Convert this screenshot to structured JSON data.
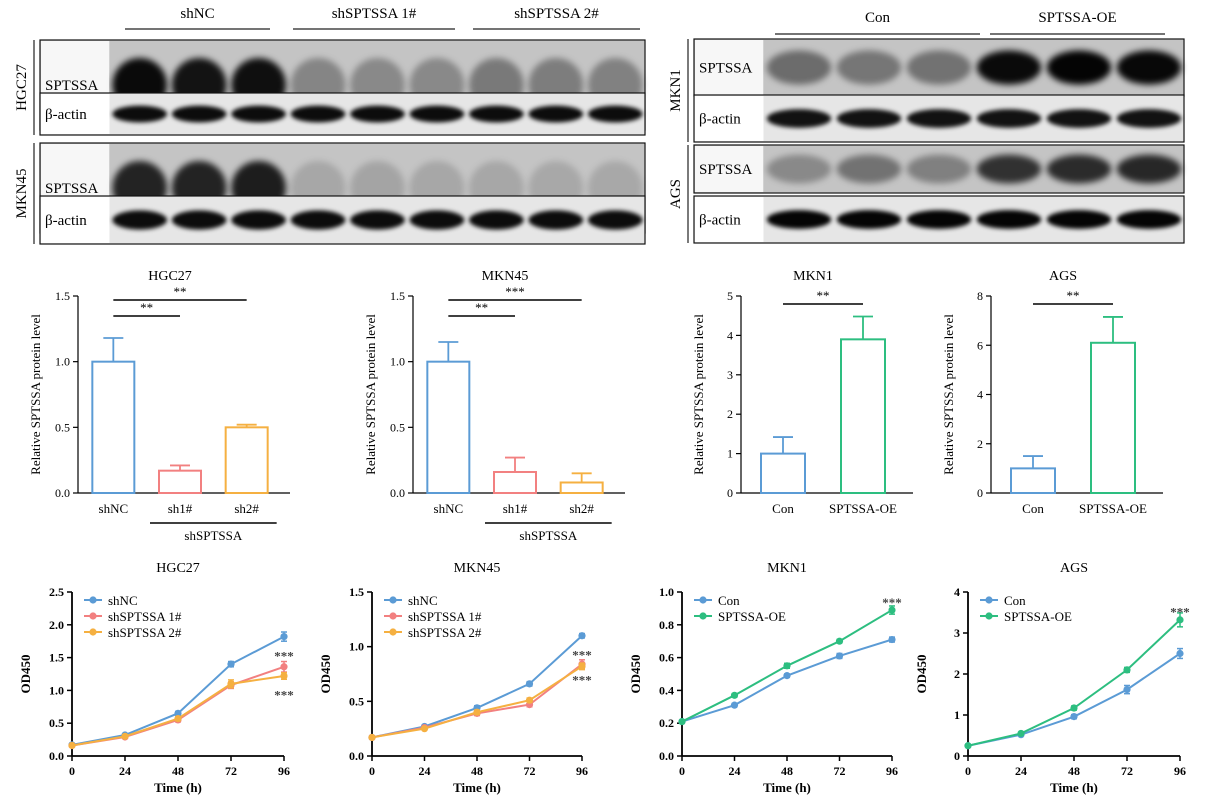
{
  "blots": [
    {
      "groups": [
        "shNC",
        "shSPTSSA 1#",
        "shSPTSSA 2#"
      ],
      "cell_lines": [
        {
          "name": "HGC27",
          "rows": [
            "SPTSSA",
            "β-actin"
          ]
        },
        {
          "name": "MKN45",
          "rows": [
            "SPTSSA",
            "β-actin"
          ]
        }
      ]
    },
    {
      "groups": [
        "Con",
        "SPTSSA-OE"
      ],
      "cell_lines": [
        {
          "name": "MKN1",
          "rows": [
            "SPTSSA",
            "β-actin"
          ]
        },
        {
          "name": "AGS",
          "rows": [
            "SPTSSA",
            "β-actin"
          ]
        }
      ]
    }
  ],
  "chart_data": [
    {
      "id": "bar-hgc27",
      "type": "bar",
      "title": "HGC27",
      "ylabel": "Relative SPTSSA protein level",
      "categories": [
        "shNC",
        "sh1#",
        "sh2#"
      ],
      "values": [
        1.0,
        0.17,
        0.5
      ],
      "errors": [
        0.18,
        0.04,
        0.02
      ],
      "colors": [
        "#5b9bd5",
        "#f28080",
        "#f5b041"
      ],
      "ylim": [
        0,
        1.5
      ],
      "yticks": [
        "0.0",
        "0.5",
        "1.0",
        "1.5"
      ],
      "group_label": "shSPTSSA",
      "significance": [
        {
          "from": 0,
          "to": 1,
          "label": "**"
        },
        {
          "from": 0,
          "to": 2,
          "label": "**"
        }
      ]
    },
    {
      "id": "bar-mkn45",
      "type": "bar",
      "title": "MKN45",
      "ylabel": "Relative SPTSSA protein level",
      "categories": [
        "shNC",
        "sh1#",
        "sh2#"
      ],
      "values": [
        1.0,
        0.16,
        0.08
      ],
      "errors": [
        0.15,
        0.11,
        0.07
      ],
      "colors": [
        "#5b9bd5",
        "#f28080",
        "#f5b041"
      ],
      "ylim": [
        0,
        1.5
      ],
      "yticks": [
        "0.0",
        "0.5",
        "1.0",
        "1.5"
      ],
      "group_label": "shSPTSSA",
      "significance": [
        {
          "from": 0,
          "to": 1,
          "label": "**"
        },
        {
          "from": 0,
          "to": 2,
          "label": "***"
        }
      ]
    },
    {
      "id": "bar-mkn1",
      "type": "bar",
      "title": "MKN1",
      "ylabel": "Relative SPTSSA protein level",
      "categories": [
        "Con",
        "SPTSSA-OE"
      ],
      "values": [
        1.0,
        3.9
      ],
      "errors": [
        0.42,
        0.58
      ],
      "colors": [
        "#5b9bd5",
        "#2dbe80"
      ],
      "ylim": [
        0,
        5
      ],
      "yticks": [
        "0",
        "1",
        "2",
        "3",
        "4",
        "5"
      ],
      "group_label": "",
      "significance": [
        {
          "from": 0,
          "to": 1,
          "label": "**"
        }
      ]
    },
    {
      "id": "bar-ags",
      "type": "bar",
      "title": "AGS",
      "ylabel": "Relative SPTSSA protein level",
      "categories": [
        "Con",
        "SPTSSA-OE"
      ],
      "values": [
        1.0,
        6.1
      ],
      "errors": [
        0.5,
        1.05
      ],
      "colors": [
        "#5b9bd5",
        "#2dbe80"
      ],
      "ylim": [
        0,
        8
      ],
      "yticks": [
        "0",
        "2",
        "4",
        "6",
        "8"
      ],
      "group_label": "",
      "significance": [
        {
          "from": 0,
          "to": 1,
          "label": "**"
        }
      ]
    },
    {
      "id": "line-hgc27",
      "type": "line",
      "title": "HGC27",
      "xlabel": "Time (h)",
      "ylabel": "OD450",
      "x": [
        0,
        24,
        48,
        72,
        96
      ],
      "xticks": [
        "0",
        "24",
        "48",
        "72",
        "96"
      ],
      "ylim": [
        0,
        2.5
      ],
      "yticks": [
        "0.0",
        "0.5",
        "1.0",
        "1.5",
        "2.0",
        "2.5"
      ],
      "series": [
        {
          "name": "shNC",
          "color": "#5b9bd5",
          "values": [
            0.17,
            0.32,
            0.65,
            1.4,
            1.82
          ],
          "errors": [
            0.01,
            0.02,
            0.03,
            0.04,
            0.07
          ]
        },
        {
          "name": "shSPTSSA 1#",
          "color": "#f28080",
          "values": [
            0.16,
            0.29,
            0.55,
            1.08,
            1.36
          ],
          "errors": [
            0.01,
            0.02,
            0.03,
            0.05,
            0.08
          ]
        },
        {
          "name": "shSPTSSA 2#",
          "color": "#f5b041",
          "values": [
            0.16,
            0.3,
            0.57,
            1.1,
            1.22
          ],
          "errors": [
            0.01,
            0.02,
            0.03,
            0.06,
            0.05
          ]
        }
      ],
      "annotations": [
        {
          "x": 96,
          "y": 1.53,
          "label": "***"
        },
        {
          "x": 96,
          "y": 0.94,
          "label": "***"
        }
      ]
    },
    {
      "id": "line-mkn45",
      "type": "line",
      "title": "MKN45",
      "xlabel": "Time (h)",
      "ylabel": "OD450",
      "x": [
        0,
        24,
        48,
        72,
        96
      ],
      "xticks": [
        "0",
        "24",
        "48",
        "72",
        "96"
      ],
      "ylim": [
        0,
        1.5
      ],
      "yticks": [
        "0.0",
        "0.5",
        "1.0",
        "1.5"
      ],
      "series": [
        {
          "name": "shNC",
          "color": "#5b9bd5",
          "values": [
            0.17,
            0.27,
            0.44,
            0.66,
            1.1
          ],
          "errors": [
            0.01,
            0.01,
            0.02,
            0.02,
            0.02
          ]
        },
        {
          "name": "shSPTSSA 1#",
          "color": "#f28080",
          "values": [
            0.17,
            0.26,
            0.39,
            0.47,
            0.84
          ],
          "errors": [
            0.01,
            0.01,
            0.02,
            0.02,
            0.04
          ]
        },
        {
          "name": "shSPTSSA 2#",
          "color": "#f5b041",
          "values": [
            0.17,
            0.25,
            0.4,
            0.51,
            0.82
          ],
          "errors": [
            0.01,
            0.01,
            0.02,
            0.02,
            0.03
          ]
        }
      ],
      "annotations": [
        {
          "x": 96,
          "y": 0.93,
          "label": "***"
        },
        {
          "x": 96,
          "y": 0.7,
          "label": "***"
        }
      ]
    },
    {
      "id": "line-mkn1",
      "type": "line",
      "title": "MKN1",
      "xlabel": "Time (h)",
      "ylabel": "OD450",
      "x": [
        0,
        24,
        48,
        72,
        96
      ],
      "xticks": [
        "0",
        "24",
        "48",
        "72",
        "96"
      ],
      "ylim": [
        0,
        1.0
      ],
      "yticks": [
        "0.0",
        "0.2",
        "0.4",
        "0.6",
        "0.8",
        "1.0"
      ],
      "series": [
        {
          "name": "Con",
          "color": "#5b9bd5",
          "values": [
            0.21,
            0.31,
            0.49,
            0.61,
            0.71
          ],
          "errors": [
            0.005,
            0.01,
            0.01,
            0.015,
            0.015
          ]
        },
        {
          "name": "SPTSSA-OE",
          "color": "#2dbe80",
          "values": [
            0.21,
            0.37,
            0.55,
            0.7,
            0.89
          ],
          "errors": [
            0.005,
            0.01,
            0.015,
            0.01,
            0.025
          ]
        }
      ],
      "annotations": [
        {
          "x": 96,
          "y": 0.94,
          "label": "***"
        }
      ]
    },
    {
      "id": "line-ags",
      "type": "line",
      "title": "AGS",
      "xlabel": "Time (h)",
      "ylabel": "OD450",
      "x": [
        0,
        24,
        48,
        72,
        96
      ],
      "xticks": [
        "0",
        "24",
        "48",
        "72",
        "96"
      ],
      "ylim": [
        0,
        4
      ],
      "yticks": [
        "0",
        "1",
        "2",
        "3",
        "4"
      ],
      "series": [
        {
          "name": "Con",
          "color": "#5b9bd5",
          "values": [
            0.25,
            0.52,
            0.96,
            1.62,
            2.5
          ],
          "errors": [
            0.02,
            0.03,
            0.05,
            0.1,
            0.12
          ]
        },
        {
          "name": "SPTSSA-OE",
          "color": "#2dbe80",
          "values": [
            0.25,
            0.55,
            1.17,
            2.1,
            3.32
          ],
          "errors": [
            0.02,
            0.03,
            0.05,
            0.06,
            0.17
          ]
        }
      ],
      "annotations": [
        {
          "x": 96,
          "y": 3.53,
          "label": "***"
        }
      ]
    }
  ]
}
